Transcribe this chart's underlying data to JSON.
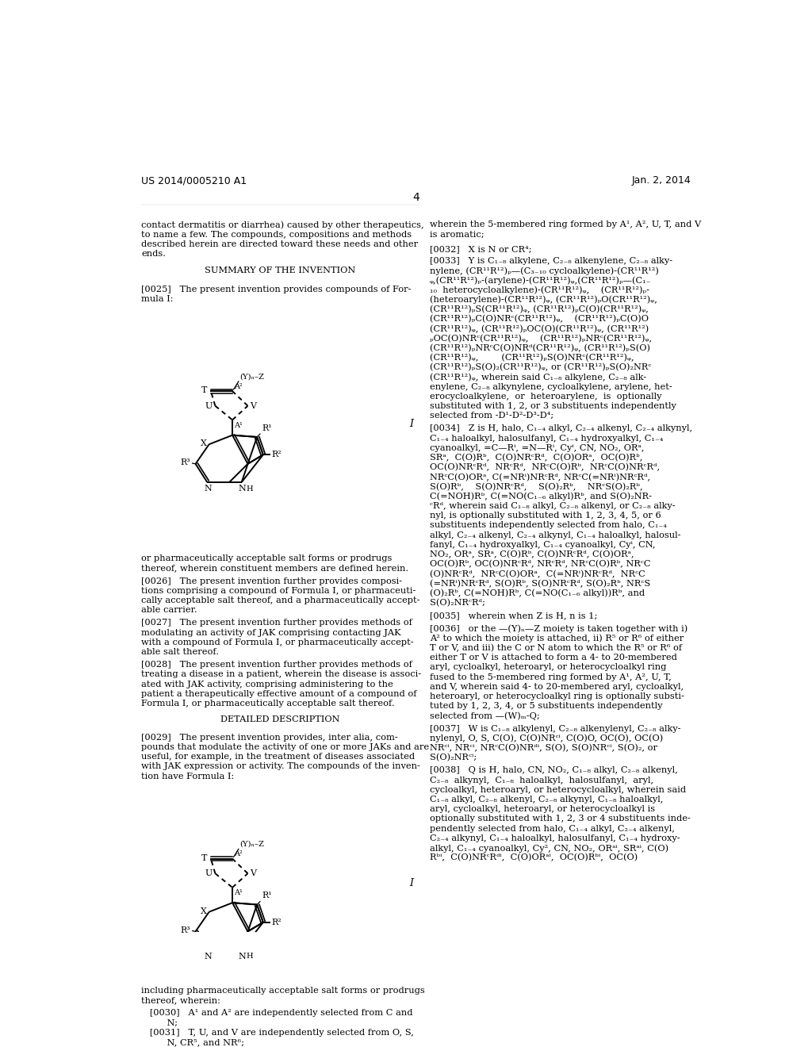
{
  "background_color": "#ffffff",
  "header_left": "US 2014/0005210 A1",
  "header_right": "Jan. 2, 2014",
  "page_number": "4"
}
